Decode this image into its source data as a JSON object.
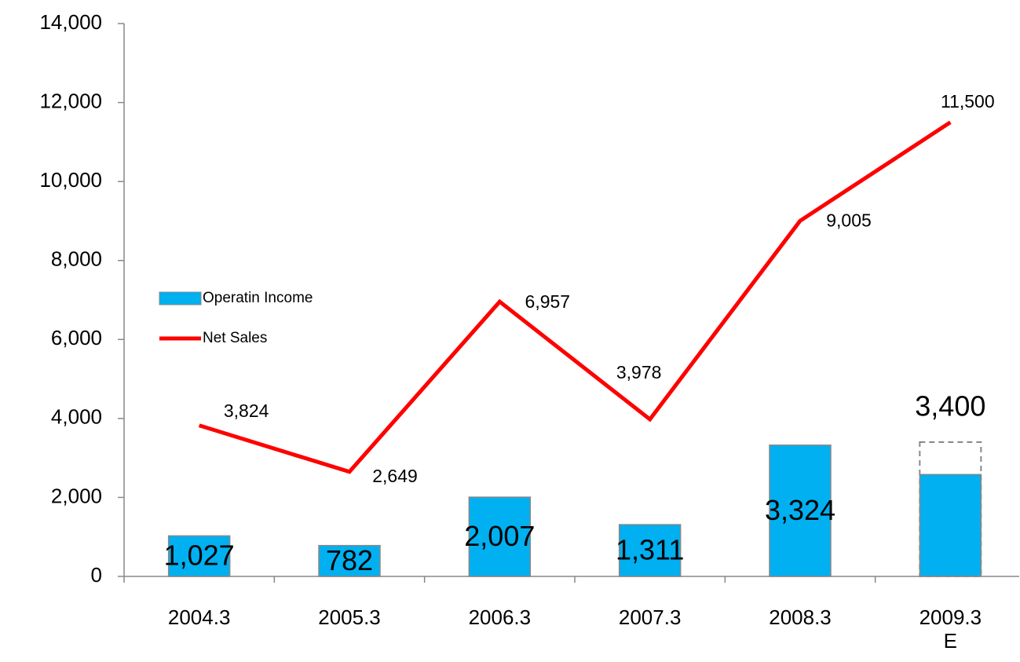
{
  "chart_data": {
    "type": "bar-line",
    "categories": [
      "2004.3",
      "2005.3",
      "2006.3",
      "2007.3",
      "2008.3",
      "2009.3\nE"
    ],
    "series": [
      {
        "name": "Operatin Income",
        "type": "bar",
        "color": "#00b0f0",
        "values": [
          1027,
          782,
          2007,
          1311,
          3324,
          3400
        ],
        "value_labels": [
          "1,027",
          "782",
          "2,007",
          "1,311",
          "3,324",
          "3,400"
        ],
        "dashed": [
          false,
          false,
          false,
          false,
          false,
          true
        ],
        "solid_part": [
          null,
          null,
          null,
          null,
          null,
          2580
        ]
      },
      {
        "name": "Net Sales",
        "type": "line",
        "color": "#ff0000",
        "values": [
          3824,
          2649,
          6957,
          3978,
          9005,
          11500
        ],
        "value_labels": [
          "3,824",
          "2,649",
          "6,957",
          "3,978",
          "9,005",
          "11,500"
        ]
      }
    ],
    "ylim": [
      0,
      14000
    ],
    "yticks": [
      0,
      {
        "value": 2000,
        "label": "2,000"
      },
      {
        "value": 4000,
        "label": "4,000"
      },
      {
        "value": 6000,
        "label": "6,000"
      },
      {
        "value": 8000,
        "label": "8,000"
      },
      {
        "value": 10000,
        "label": "10,000"
      },
      {
        "value": 12000,
        "label": "12,000"
      },
      {
        "value": 14000,
        "label": "14,000"
      }
    ],
    "legend": "left"
  }
}
